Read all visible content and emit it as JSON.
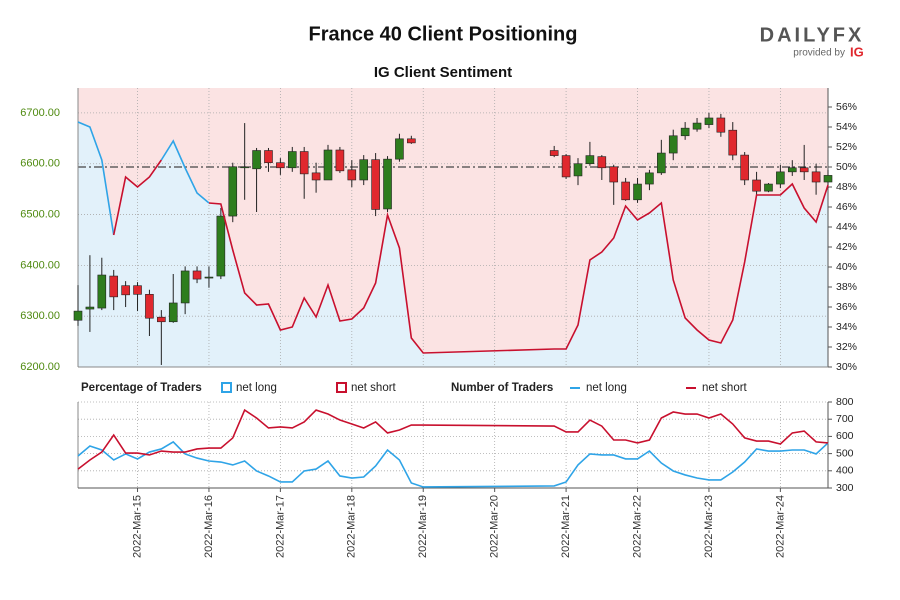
{
  "header": {
    "title": "France 40 Client Positioning",
    "logo": "DAILYFX",
    "provided_by": "provided by",
    "provider": "IG"
  },
  "chart_data": [
    {
      "type": "candlestick",
      "title": "IG Client Sentiment",
      "legend_title": "Percentage of Traders",
      "up_color": "#2e7d1e",
      "down_color": "#e0282e",
      "x": [
        "2022-03-14T04:00",
        "2022-03-14T08:00",
        "2022-03-14T12:00",
        "2022-03-14T16:00",
        "2022-03-14T20:00",
        "2022-03-15T00:00",
        "2022-03-15T04:00",
        "2022-03-15T08:00",
        "2022-03-15T12:00",
        "2022-03-15T16:00",
        "2022-03-15T20:00",
        "2022-03-16T00:00",
        "2022-03-16T04:00",
        "2022-03-16T08:00",
        "2022-03-16T12:00",
        "2022-03-16T16:00",
        "2022-03-16T20:00",
        "2022-03-17T00:00",
        "2022-03-17T04:00",
        "2022-03-17T08:00",
        "2022-03-17T12:00",
        "2022-03-17T16:00",
        "2022-03-17T20:00",
        "2022-03-18T00:00",
        "2022-03-18T04:00",
        "2022-03-18T08:00",
        "2022-03-18T12:00",
        "2022-03-18T16:00",
        "2022-03-18T20:00",
        "2022-03-20T20:00",
        "2022-03-21T00:00",
        "2022-03-21T04:00",
        "2022-03-21T08:00",
        "2022-03-21T12:00",
        "2022-03-21T16:00",
        "2022-03-21T20:00",
        "2022-03-22T00:00",
        "2022-03-22T04:00",
        "2022-03-22T08:00",
        "2022-03-22T12:00",
        "2022-03-22T16:00",
        "2022-03-22T20:00",
        "2022-03-23T00:00",
        "2022-03-23T04:00",
        "2022-03-23T08:00",
        "2022-03-23T12:00",
        "2022-03-23T16:00",
        "2022-03-23T20:00",
        "2022-03-24T00:00",
        "2022-03-24T04:00",
        "2022-03-24T08:00",
        "2022-03-24T12:00",
        "2022-03-24T16:00"
      ],
      "open": [
        6292,
        6314,
        6316,
        6379,
        6360,
        6360,
        6343,
        6298,
        6289,
        6326,
        6389,
        6375,
        6379,
        6497,
        6592,
        6590,
        6626,
        6602,
        6592,
        6624,
        6582,
        6568,
        6627,
        6588,
        6568,
        6608,
        6511,
        6609,
        6649,
        6626,
        6616,
        6576,
        6600,
        6614,
        6594,
        6564,
        6529,
        6560,
        6582,
        6621,
        6655,
        6668,
        6677,
        6690,
        6666,
        6617,
        6568,
        6546,
        6560,
        6584,
        6592,
        6584,
        6564
      ],
      "high": [
        6361,
        6420,
        6415,
        6391,
        6369,
        6367,
        6352,
        6312,
        6383,
        6398,
        6398,
        6398,
        6513,
        6602,
        6680,
        6631,
        6631,
        6611,
        6633,
        6633,
        6602,
        6637,
        6633,
        6607,
        6617,
        6621,
        6615,
        6659,
        6655,
        6635,
        6619,
        6611,
        6643,
        6617,
        6598,
        6572,
        6572,
        6588,
        6647,
        6667,
        6682,
        6690,
        6700,
        6698,
        6682,
        6623,
        6584,
        6562,
        6598,
        6607,
        6637,
        6600,
        6588
      ],
      "low": [
        6281,
        6269,
        6312,
        6312,
        6318,
        6310,
        6261,
        6204,
        6287,
        6304,
        6365,
        6356,
        6373,
        6485,
        6529,
        6505,
        6584,
        6578,
        6584,
        6531,
        6543,
        6568,
        6582,
        6554,
        6558,
        6497,
        6505,
        6604,
        6639,
        6613,
        6570,
        6558,
        6596,
        6568,
        6519,
        6527,
        6523,
        6548,
        6578,
        6607,
        6647,
        6663,
        6670,
        6653,
        6607,
        6558,
        6539,
        6544,
        6552,
        6576,
        6568,
        6539,
        6552
      ],
      "close": [
        6310,
        6318,
        6381,
        6338,
        6342,
        6343,
        6296,
        6289,
        6326,
        6389,
        6373,
        6377,
        6497,
        6594,
        6594,
        6626,
        6602,
        6592,
        6624,
        6580,
        6568,
        6627,
        6586,
        6568,
        6608,
        6510,
        6609,
        6649,
        6641,
        6616,
        6574,
        6600,
        6616,
        6592,
        6564,
        6529,
        6560,
        6582,
        6621,
        6655,
        6670,
        6680,
        6690,
        6662,
        6617,
        6568,
        6546,
        6560,
        6584,
        6592,
        6584,
        6564,
        6577
      ],
      "series": [
        {
          "name": "net long",
          "color": "#2fa4e7",
          "axis": "y2",
          "x": [
            "2022-03-14T04:00",
            "2022-03-14T08:00",
            "2022-03-14T12:00",
            "2022-03-14T16:00",
            "2022-03-14T20:00",
            "2022-03-15T00:00",
            "2022-03-15T04:00",
            "2022-03-15T08:00",
            "2022-03-15T12:00",
            "2022-03-15T16:00",
            "2022-03-15T20:00",
            "2022-03-16T00:00",
            "2022-03-16T04:00",
            "2022-03-16T08:00",
            "2022-03-16T12:00",
            "2022-03-16T16:00",
            "2022-03-16T20:00",
            "2022-03-17T00:00",
            "2022-03-17T04:00",
            "2022-03-17T08:00",
            "2022-03-17T12:00",
            "2022-03-17T16:00",
            "2022-03-17T20:00",
            "2022-03-18T00:00",
            "2022-03-18T04:00",
            "2022-03-18T08:00",
            "2022-03-18T12:00",
            "2022-03-18T16:00",
            "2022-03-18T20:00",
            "2022-03-19T00:00",
            "2022-03-20T20:00",
            "2022-03-21T00:00",
            "2022-03-21T04:00",
            "2022-03-21T08:00",
            "2022-03-21T12:00",
            "2022-03-21T16:00",
            "2022-03-21T20:00",
            "2022-03-22T00:00",
            "2022-03-22T04:00",
            "2022-03-22T08:00",
            "2022-03-22T12:00",
            "2022-03-22T16:00",
            "2022-03-22T20:00",
            "2022-03-23T00:00",
            "2022-03-23T04:00",
            "2022-03-23T08:00",
            "2022-03-23T12:00",
            "2022-03-23T16:00",
            "2022-03-23T20:00",
            "2022-03-24T00:00",
            "2022-03-24T04:00",
            "2022-03-24T08:00",
            "2022-03-24T12:00",
            "2022-03-24T16:00"
          ],
          "values": [
            54.5,
            54.0,
            50.7,
            43.2,
            null,
            null,
            null,
            50.7,
            52.6,
            49.9,
            47.4,
            46.4,
            null,
            null,
            null,
            null,
            null,
            null,
            null,
            null,
            null,
            null,
            null,
            null,
            null,
            null,
            null,
            null,
            null,
            null,
            null,
            null,
            null,
            null,
            null,
            null,
            null,
            null,
            null,
            null,
            null,
            null,
            null,
            null,
            null,
            null,
            null,
            null,
            null,
            null,
            null,
            null,
            null,
            null
          ]
        },
        {
          "name": "net short",
          "color": "#c8102e",
          "axis": "y2",
          "x": [
            "2022-03-14T04:00",
            "2022-03-14T08:00",
            "2022-03-14T12:00",
            "2022-03-14T16:00",
            "2022-03-14T20:00",
            "2022-03-15T00:00",
            "2022-03-15T04:00",
            "2022-03-15T08:00",
            "2022-03-15T12:00",
            "2022-03-15T16:00",
            "2022-03-15T20:00",
            "2022-03-16T00:00",
            "2022-03-16T04:00",
            "2022-03-16T08:00",
            "2022-03-16T12:00",
            "2022-03-16T16:00",
            "2022-03-16T20:00",
            "2022-03-17T00:00",
            "2022-03-17T04:00",
            "2022-03-17T08:00",
            "2022-03-17T12:00",
            "2022-03-17T16:00",
            "2022-03-17T20:00",
            "2022-03-18T00:00",
            "2022-03-18T04:00",
            "2022-03-18T08:00",
            "2022-03-18T12:00",
            "2022-03-18T16:00",
            "2022-03-18T20:00",
            "2022-03-19T00:00",
            "2022-03-20T20:00",
            "2022-03-21T00:00",
            "2022-03-21T04:00",
            "2022-03-21T08:00",
            "2022-03-21T12:00",
            "2022-03-21T16:00",
            "2022-03-21T20:00",
            "2022-03-22T00:00",
            "2022-03-22T04:00",
            "2022-03-22T08:00",
            "2022-03-22T12:00",
            "2022-03-22T16:00",
            "2022-03-22T20:00",
            "2022-03-23T00:00",
            "2022-03-23T04:00",
            "2022-03-23T08:00",
            "2022-03-23T12:00",
            "2022-03-23T16:00",
            "2022-03-23T20:00",
            "2022-03-24T00:00",
            "2022-03-24T04:00",
            "2022-03-24T08:00",
            "2022-03-24T12:00",
            "2022-03-24T16:00"
          ],
          "values": [
            null,
            null,
            null,
            43.2,
            49.0,
            48.0,
            49.0,
            50.7,
            null,
            null,
            null,
            46.4,
            46.3,
            41.7,
            37.4,
            36.2,
            36.3,
            33.7,
            34.0,
            36.9,
            35.0,
            38.2,
            34.6,
            34.8,
            35.9,
            38.4,
            45.2,
            41.9,
            32.9,
            31.4,
            31.8,
            31.8,
            34.2,
            40.7,
            41.5,
            42.9,
            46.1,
            44.7,
            45.4,
            46.4,
            38.7,
            34.9,
            33.7,
            32.7,
            32.4,
            34.7,
            40.5,
            47.2,
            47.2,
            47.2,
            48.3,
            45.9,
            44.5,
            48.2
          ]
        }
      ],
      "reference_line": {
        "axis": "y2",
        "value": 50
      },
      "xlim": [
        "2022-03-14T04:00",
        "2022-03-24T16:00"
      ],
      "xticks": [
        "2022-03-15T00:00",
        "2022-03-16T00:00",
        "2022-03-17T00:00",
        "2022-03-18T00:00",
        "2022-03-19T00:00",
        "2022-03-20T00:00",
        "2022-03-21T00:00",
        "2022-03-22T00:00",
        "2022-03-23T00:00",
        "2022-03-24T00:00"
      ],
      "ylim": [
        6200,
        6749
      ],
      "yticks": [
        {
          "value": 6200,
          "label": "6200.00"
        },
        {
          "value": 6300,
          "label": "6300.00"
        },
        {
          "value": 6400,
          "label": "6400.00"
        },
        {
          "value": 6500,
          "label": "6500.00"
        },
        {
          "value": 6600,
          "label": "6600.00"
        },
        {
          "value": 6700,
          "label": "6700.00"
        }
      ],
      "y2lim": [
        30,
        57.9
      ],
      "y2ticks": [
        {
          "value": 30,
          "label": "30%"
        },
        {
          "value": 32,
          "label": "32%"
        },
        {
          "value": 34,
          "label": "34%"
        },
        {
          "value": 36,
          "label": "36%"
        },
        {
          "value": 38,
          "label": "38%"
        },
        {
          "value": 40,
          "label": "40%"
        },
        {
          "value": 42,
          "label": "42%"
        },
        {
          "value": 44,
          "label": "44%"
        },
        {
          "value": 46,
          "label": "46%"
        },
        {
          "value": 48,
          "label": "48%"
        },
        {
          "value": 50,
          "label": "50%"
        },
        {
          "value": 52,
          "label": "52%"
        },
        {
          "value": 54,
          "label": "54%"
        },
        {
          "value": 56,
          "label": "56%"
        }
      ],
      "grid": true
    },
    {
      "type": "line",
      "legend_title": "Number of Traders",
      "x": [
        "2022-03-14T04:00",
        "2022-03-14T08:00",
        "2022-03-14T12:00",
        "2022-03-14T16:00",
        "2022-03-14T20:00",
        "2022-03-15T00:00",
        "2022-03-15T04:00",
        "2022-03-15T08:00",
        "2022-03-15T12:00",
        "2022-03-15T16:00",
        "2022-03-15T20:00",
        "2022-03-16T00:00",
        "2022-03-16T04:00",
        "2022-03-16T08:00",
        "2022-03-16T12:00",
        "2022-03-16T16:00",
        "2022-03-16T20:00",
        "2022-03-17T00:00",
        "2022-03-17T04:00",
        "2022-03-17T08:00",
        "2022-03-17T12:00",
        "2022-03-17T16:00",
        "2022-03-17T20:00",
        "2022-03-18T00:00",
        "2022-03-18T04:00",
        "2022-03-18T08:00",
        "2022-03-18T12:00",
        "2022-03-18T16:00",
        "2022-03-18T20:00",
        "2022-03-19T00:00",
        "2022-03-20T20:00",
        "2022-03-21T00:00",
        "2022-03-21T04:00",
        "2022-03-21T08:00",
        "2022-03-21T12:00",
        "2022-03-21T16:00",
        "2022-03-21T20:00",
        "2022-03-22T00:00",
        "2022-03-22T04:00",
        "2022-03-22T08:00",
        "2022-03-22T12:00",
        "2022-03-22T16:00",
        "2022-03-22T20:00",
        "2022-03-23T00:00",
        "2022-03-23T04:00",
        "2022-03-23T08:00",
        "2022-03-23T12:00",
        "2022-03-23T16:00",
        "2022-03-23T20:00",
        "2022-03-24T00:00",
        "2022-03-24T04:00",
        "2022-03-24T08:00",
        "2022-03-24T12:00",
        "2022-03-24T16:00"
      ],
      "series": [
        {
          "name": "net long",
          "color": "#2fa4e7",
          "values": [
            486,
            544,
            521,
            463,
            498,
            469,
            509,
            527,
            568,
            498,
            474,
            457,
            451,
            434,
            457,
            399,
            370,
            335,
            335,
            399,
            410,
            457,
            370,
            358,
            364,
            428,
            521,
            463,
            329,
            306,
            312,
            335,
            434,
            498,
            492,
            492,
            469,
            469,
            515,
            445,
            399,
            376,
            358,
            347,
            347,
            393,
            451,
            527,
            515,
            515,
            521,
            521,
            498,
            562
          ]
        },
        {
          "name": "net short",
          "color": "#c8102e",
          "values": [
            410,
            463,
            509,
            608,
            503,
            503,
            492,
            515,
            509,
            509,
            527,
            532,
            532,
            591,
            753,
            707,
            649,
            655,
            649,
            684,
            753,
            730,
            695,
            672,
            649,
            684,
            620,
            637,
            666,
            666,
            660,
            626,
            626,
            695,
            660,
            579,
            579,
            562,
            579,
            707,
            742,
            730,
            730,
            707,
            730,
            672,
            591,
            573,
            573,
            556,
            620,
            631,
            568,
            562
          ]
        }
      ],
      "xlim": [
        "2022-03-14T04:00",
        "2022-03-24T16:00"
      ],
      "xticks": [
        {
          "value": "2022-03-15T00:00",
          "label": "2022-Mar-15"
        },
        {
          "value": "2022-03-16T00:00",
          "label": "2022-Mar-16"
        },
        {
          "value": "2022-03-17T00:00",
          "label": "2022-Mar-17"
        },
        {
          "value": "2022-03-18T00:00",
          "label": "2022-Mar-18"
        },
        {
          "value": "2022-03-19T00:00",
          "label": "2022-Mar-19"
        },
        {
          "value": "2022-03-20T00:00",
          "label": "2022-Mar-20"
        },
        {
          "value": "2022-03-21T00:00",
          "label": "2022-Mar-21"
        },
        {
          "value": "2022-03-22T00:00",
          "label": "2022-Mar-22"
        },
        {
          "value": "2022-03-23T00:00",
          "label": "2022-Mar-23"
        },
        {
          "value": "2022-03-24T00:00",
          "label": "2022-Mar-24"
        }
      ],
      "ylim": [
        300,
        800
      ],
      "yticks": [
        300,
        400,
        500,
        600,
        700,
        800
      ],
      "grid": true
    }
  ]
}
